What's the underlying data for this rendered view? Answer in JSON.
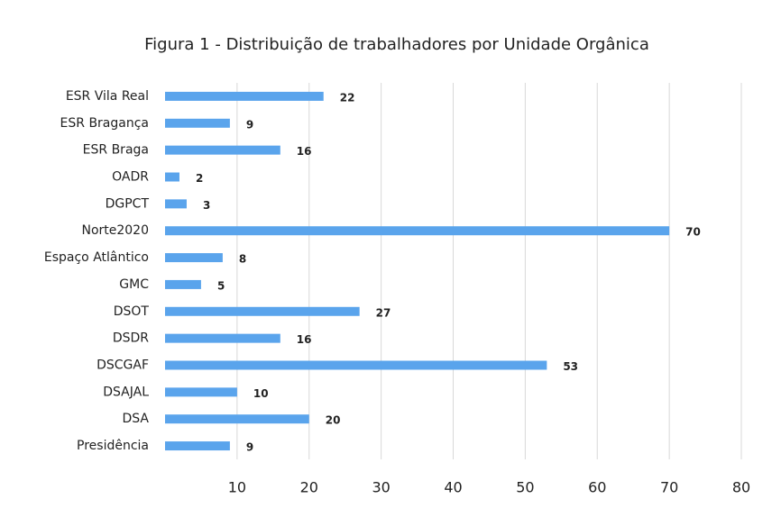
{
  "chart_data": {
    "type": "bar",
    "orientation": "horizontal",
    "title": "Figura 1 - Distribuição de trabalhadores por Unidade Orgânica",
    "categories": [
      "ESR Vila Real",
      "ESR Bragança",
      "ESR Braga",
      "OADR",
      "DGPCT",
      "Norte2020",
      "Espaço Atlântico",
      "GMC",
      "DSOT",
      "DSDR",
      "DSCGAF",
      "DSAJAL",
      "DSA",
      "Presidência"
    ],
    "values": [
      22,
      9,
      16,
      2,
      3,
      70,
      8,
      5,
      27,
      16,
      53,
      10,
      20,
      9
    ],
    "color": "#5aa4ec",
    "xlim": [
      0,
      80
    ],
    "xticks": [
      10,
      20,
      30,
      40,
      50,
      60,
      70,
      80
    ],
    "grid": true
  }
}
